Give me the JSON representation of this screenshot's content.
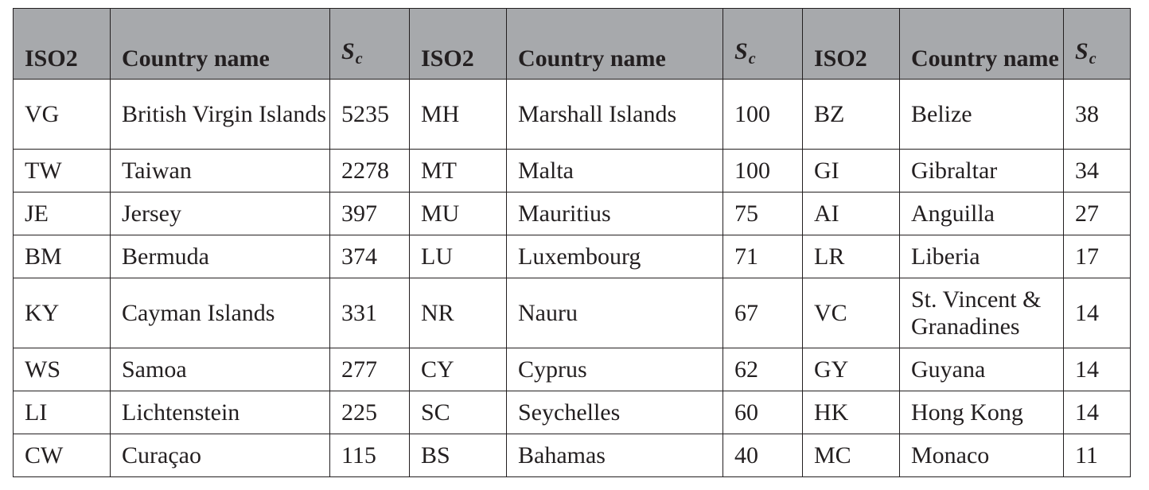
{
  "table": {
    "headers": [
      {
        "type": "text",
        "label": "ISO2"
      },
      {
        "type": "text",
        "label": "Country name"
      },
      {
        "type": "sc",
        "main": "S",
        "sub": "c"
      },
      {
        "type": "text",
        "label": "ISO2"
      },
      {
        "type": "text",
        "label": "Country name"
      },
      {
        "type": "sc",
        "main": "S",
        "sub": "c"
      },
      {
        "type": "text",
        "label": "ISO2"
      },
      {
        "type": "text",
        "label": "Country name"
      },
      {
        "type": "sc",
        "main": "S",
        "sub": "c"
      }
    ],
    "rows": [
      {
        "tall": true,
        "cells": [
          "VG",
          "British Virgin Islands",
          "5235",
          "MH",
          "Marshall Islands",
          "100",
          "BZ",
          "Belize",
          "38"
        ]
      },
      {
        "tall": false,
        "cells": [
          "TW",
          "Taiwan",
          "2278",
          "MT",
          "Malta",
          "100",
          "GI",
          "Gibraltar",
          "34"
        ]
      },
      {
        "tall": false,
        "cells": [
          "JE",
          "Jersey",
          "397",
          "MU",
          "Mauritius",
          "75",
          "AI",
          "Anguilla",
          "27"
        ]
      },
      {
        "tall": false,
        "cells": [
          "BM",
          "Bermuda",
          "374",
          "LU",
          "Luxembourg",
          "71",
          "LR",
          "Liberia",
          "17"
        ]
      },
      {
        "tall": true,
        "cells": [
          "KY",
          "Cayman Islands",
          "331",
          "NR",
          "Nauru",
          "67",
          "VC",
          "St. Vincent & Granadines",
          "14"
        ]
      },
      {
        "tall": false,
        "cells": [
          "WS",
          "Samoa",
          "277",
          "CY",
          "Cyprus",
          "62",
          "GY",
          "Guyana",
          "14"
        ]
      },
      {
        "tall": false,
        "cells": [
          "LI",
          "Lichtenstein",
          "225",
          "SC",
          "Seychelles",
          "60",
          "HK",
          "Hong Kong",
          "14"
        ]
      },
      {
        "tall": false,
        "cells": [
          "CW",
          "Curaçao",
          "115",
          "BS",
          "Bahamas",
          "40",
          "MC",
          "Monaco",
          "11"
        ]
      }
    ]
  }
}
